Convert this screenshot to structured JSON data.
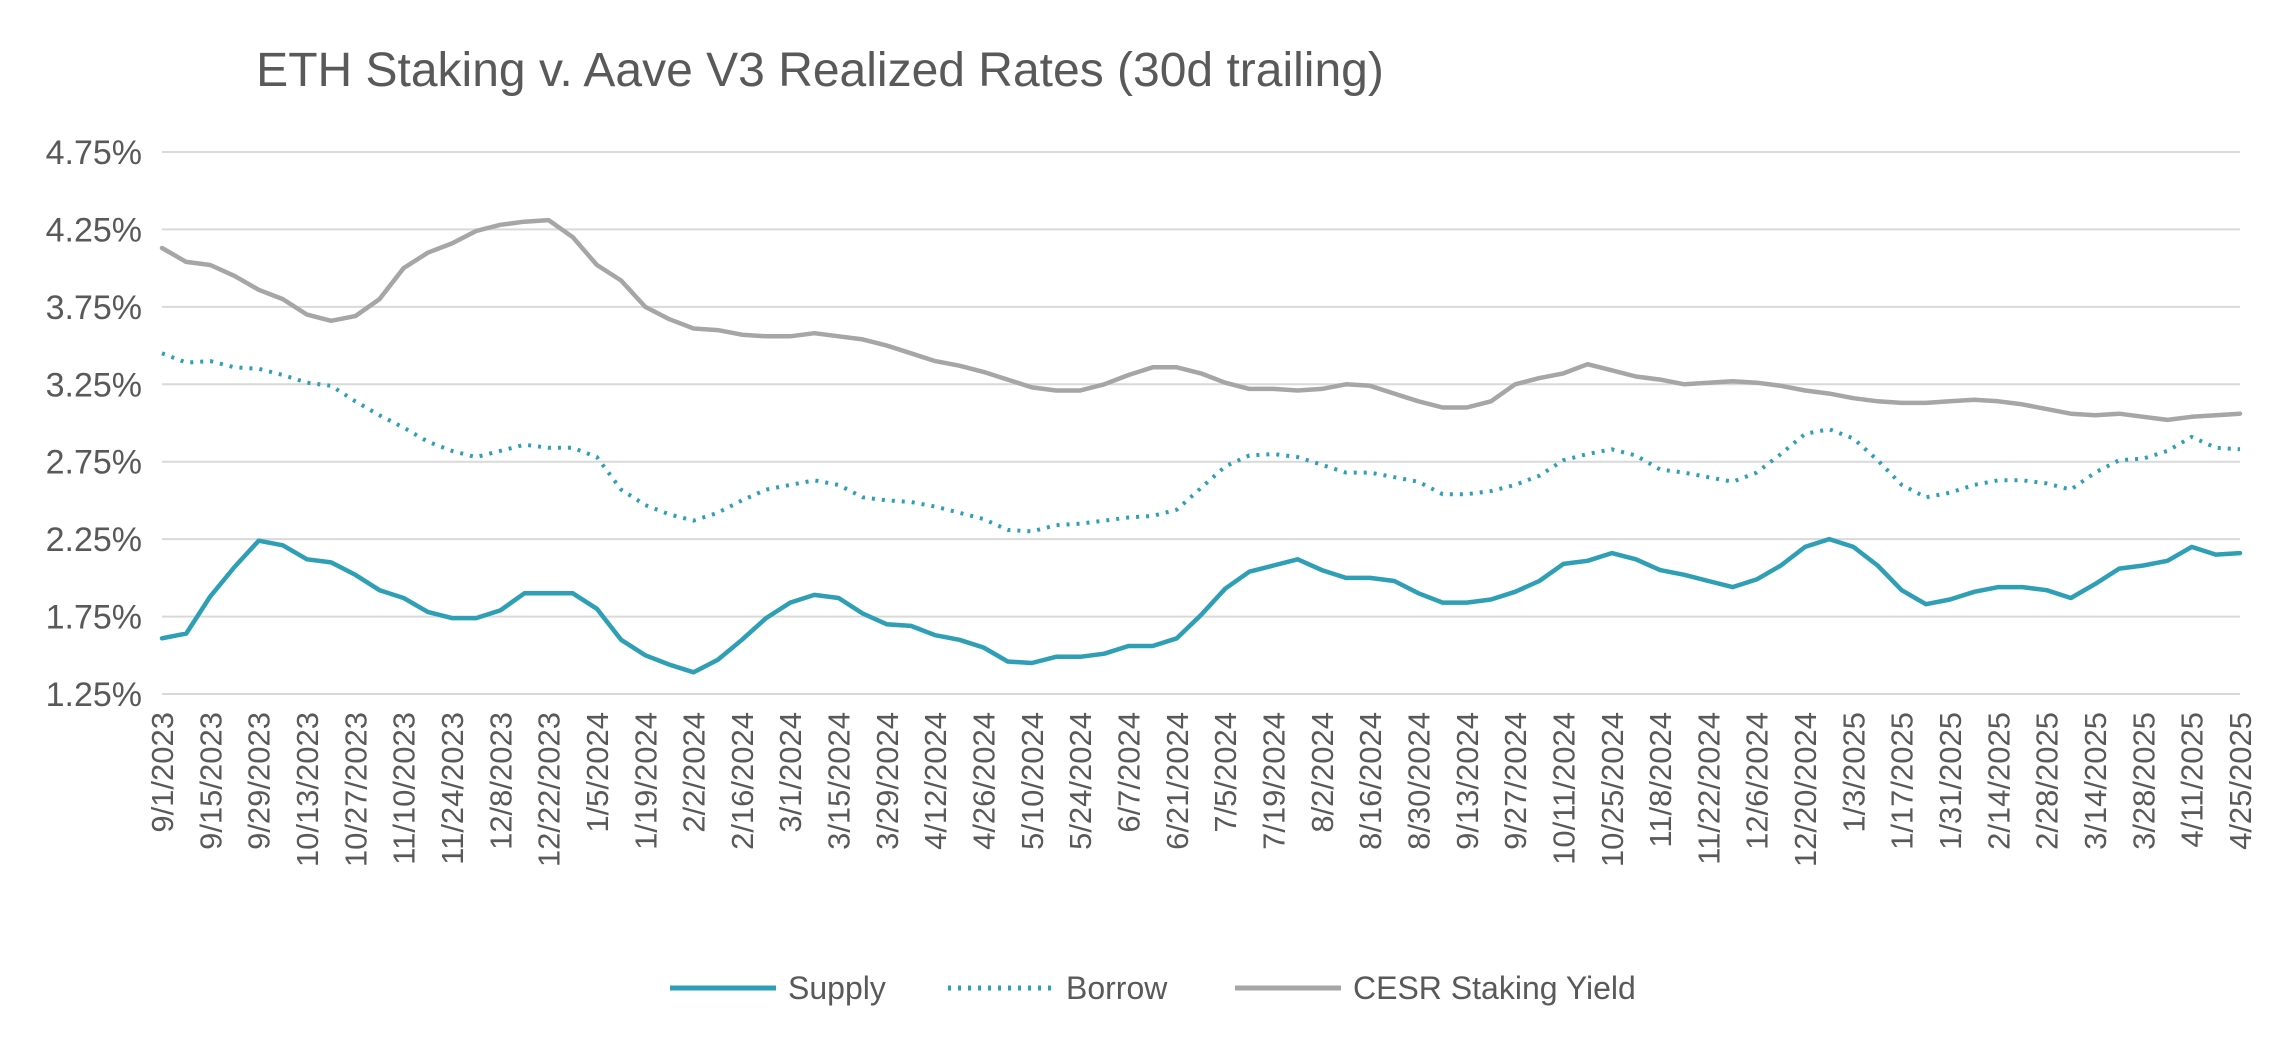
{
  "chart_data": {
    "type": "line",
    "title": "ETH Staking v. Aave V3 Realized Rates (30d trailing)",
    "xlabel": "",
    "ylabel": "",
    "ylim": [
      1.25,
      4.75
    ],
    "y_ticks": [
      "4.75%",
      "4.25%",
      "3.75%",
      "3.25%",
      "2.75%",
      "2.25%",
      "1.75%",
      "1.25%"
    ],
    "y_tick_values": [
      4.75,
      4.25,
      3.75,
      3.25,
      2.75,
      2.25,
      1.75,
      1.25
    ],
    "x_range": [
      "9/1/2023",
      "4/25/2025"
    ],
    "x_ticks": [
      "9/1/2023",
      "9/15/2023",
      "9/29/2023",
      "10/13/2023",
      "10/27/2023",
      "11/10/2023",
      "11/24/2023",
      "12/8/2023",
      "12/22/2023",
      "1/5/2024",
      "1/19/2024",
      "2/2/2024",
      "2/16/2024",
      "3/1/2024",
      "3/15/2024",
      "3/29/2024",
      "4/12/2024",
      "4/26/2024",
      "5/10/2024",
      "5/24/2024",
      "6/7/2024",
      "6/21/2024",
      "7/5/2024",
      "7/19/2024",
      "8/2/2024",
      "8/16/2024",
      "8/30/2024",
      "9/13/2024",
      "9/27/2024",
      "10/11/2024",
      "10/25/2024",
      "11/8/2024",
      "11/22/2024",
      "12/6/2024",
      "12/20/2024",
      "1/3/2025",
      "1/17/2025",
      "1/31/2025",
      "2/14/2025",
      "2/28/2025",
      "3/14/2025",
      "3/28/2025",
      "4/11/2025",
      "4/25/2025"
    ],
    "grid": true,
    "legend_position": "bottom",
    "series": [
      {
        "name": "Supply",
        "color": "#2e9fb5",
        "style": "solid",
        "points": [
          [
            "9/1/2023",
            1.61
          ],
          [
            "9/8/2023",
            1.64
          ],
          [
            "9/15/2023",
            1.88
          ],
          [
            "9/22/2023",
            2.07
          ],
          [
            "9/29/2023",
            2.24
          ],
          [
            "10/6/2023",
            2.21
          ],
          [
            "10/13/2023",
            2.12
          ],
          [
            "10/20/2023",
            2.1
          ],
          [
            "10/27/2023",
            2.02
          ],
          [
            "11/3/2023",
            1.92
          ],
          [
            "11/10/2023",
            1.87
          ],
          [
            "11/17/2023",
            1.78
          ],
          [
            "11/24/2023",
            1.74
          ],
          [
            "12/1/2023",
            1.74
          ],
          [
            "12/8/2023",
            1.79
          ],
          [
            "12/15/2023",
            1.9
          ],
          [
            "12/22/2023",
            1.9
          ],
          [
            "12/29/2023",
            1.9
          ],
          [
            "1/5/2024",
            1.8
          ],
          [
            "1/12/2024",
            1.6
          ],
          [
            "1/19/2024",
            1.5
          ],
          [
            "1/26/2024",
            1.44
          ],
          [
            "2/2/2024",
            1.39
          ],
          [
            "2/9/2024",
            1.47
          ],
          [
            "2/16/2024",
            1.6
          ],
          [
            "2/23/2024",
            1.74
          ],
          [
            "3/1/2024",
            1.84
          ],
          [
            "3/8/2024",
            1.89
          ],
          [
            "3/15/2024",
            1.87
          ],
          [
            "3/22/2024",
            1.77
          ],
          [
            "3/29/2024",
            1.7
          ],
          [
            "4/5/2024",
            1.69
          ],
          [
            "4/12/2024",
            1.63
          ],
          [
            "4/19/2024",
            1.6
          ],
          [
            "4/26/2024",
            1.55
          ],
          [
            "5/3/2024",
            1.46
          ],
          [
            "5/10/2024",
            1.45
          ],
          [
            "5/17/2024",
            1.49
          ],
          [
            "5/24/2024",
            1.49
          ],
          [
            "5/31/2024",
            1.51
          ],
          [
            "6/7/2024",
            1.56
          ],
          [
            "6/14/2024",
            1.56
          ],
          [
            "6/21/2024",
            1.61
          ],
          [
            "6/28/2024",
            1.76
          ],
          [
            "7/5/2024",
            1.93
          ],
          [
            "7/12/2024",
            2.04
          ],
          [
            "7/19/2024",
            2.08
          ],
          [
            "7/26/2024",
            2.12
          ],
          [
            "8/2/2024",
            2.05
          ],
          [
            "8/9/2024",
            2.0
          ],
          [
            "8/16/2024",
            2.0
          ],
          [
            "8/23/2024",
            1.98
          ],
          [
            "8/30/2024",
            1.9
          ],
          [
            "9/6/2024",
            1.84
          ],
          [
            "9/13/2024",
            1.84
          ],
          [
            "9/20/2024",
            1.86
          ],
          [
            "9/27/2024",
            1.91
          ],
          [
            "10/4/2024",
            1.98
          ],
          [
            "10/11/2024",
            2.09
          ],
          [
            "10/18/2024",
            2.11
          ],
          [
            "10/25/2024",
            2.16
          ],
          [
            "11/1/2024",
            2.12
          ],
          [
            "11/8/2024",
            2.05
          ],
          [
            "11/15/2024",
            2.02
          ],
          [
            "11/22/2024",
            1.98
          ],
          [
            "11/29/2024",
            1.94
          ],
          [
            "12/6/2024",
            1.99
          ],
          [
            "12/13/2024",
            2.08
          ],
          [
            "12/20/2024",
            2.2
          ],
          [
            "12/27/2024",
            2.25
          ],
          [
            "1/3/2025",
            2.2
          ],
          [
            "1/10/2025",
            2.08
          ],
          [
            "1/17/2025",
            1.92
          ],
          [
            "1/24/2025",
            1.83
          ],
          [
            "1/31/2025",
            1.86
          ],
          [
            "2/7/2025",
            1.91
          ],
          [
            "2/14/2025",
            1.94
          ],
          [
            "2/21/2025",
            1.94
          ],
          [
            "2/28/2025",
            1.92
          ],
          [
            "3/7/2025",
            1.87
          ],
          [
            "3/14/2025",
            1.96
          ],
          [
            "3/21/2025",
            2.06
          ],
          [
            "3/28/2025",
            2.08
          ],
          [
            "4/4/2025",
            2.11
          ],
          [
            "4/11/2025",
            2.2
          ],
          [
            "4/18/2025",
            2.15
          ],
          [
            "4/25/2025",
            2.16
          ]
        ]
      },
      {
        "name": "Borrow",
        "color": "#2e9fb5",
        "style": "dotted",
        "points": [
          [
            "9/1/2023",
            3.45
          ],
          [
            "9/8/2023",
            3.39
          ],
          [
            "9/15/2023",
            3.4
          ],
          [
            "9/22/2023",
            3.36
          ],
          [
            "9/29/2023",
            3.35
          ],
          [
            "10/6/2023",
            3.31
          ],
          [
            "10/13/2023",
            3.26
          ],
          [
            "10/20/2023",
            3.24
          ],
          [
            "10/27/2023",
            3.14
          ],
          [
            "11/3/2023",
            3.05
          ],
          [
            "11/10/2023",
            2.97
          ],
          [
            "11/17/2023",
            2.88
          ],
          [
            "11/24/2023",
            2.82
          ],
          [
            "12/1/2023",
            2.78
          ],
          [
            "12/8/2023",
            2.82
          ],
          [
            "12/15/2023",
            2.86
          ],
          [
            "12/22/2023",
            2.84
          ],
          [
            "12/29/2023",
            2.84
          ],
          [
            "1/5/2024",
            2.78
          ],
          [
            "1/12/2024",
            2.57
          ],
          [
            "1/19/2024",
            2.47
          ],
          [
            "1/26/2024",
            2.41
          ],
          [
            "2/2/2024",
            2.37
          ],
          [
            "2/9/2024",
            2.42
          ],
          [
            "2/16/2024",
            2.5
          ],
          [
            "2/23/2024",
            2.57
          ],
          [
            "3/1/2024",
            2.6
          ],
          [
            "3/8/2024",
            2.63
          ],
          [
            "3/15/2024",
            2.6
          ],
          [
            "3/22/2024",
            2.52
          ],
          [
            "3/29/2024",
            2.5
          ],
          [
            "4/5/2024",
            2.49
          ],
          [
            "4/12/2024",
            2.46
          ],
          [
            "4/19/2024",
            2.42
          ],
          [
            "4/26/2024",
            2.38
          ],
          [
            "5/3/2024",
            2.31
          ],
          [
            "5/10/2024",
            2.3
          ],
          [
            "5/17/2024",
            2.34
          ],
          [
            "5/24/2024",
            2.35
          ],
          [
            "5/31/2024",
            2.37
          ],
          [
            "6/7/2024",
            2.39
          ],
          [
            "6/14/2024",
            2.4
          ],
          [
            "6/21/2024",
            2.44
          ],
          [
            "6/28/2024",
            2.58
          ],
          [
            "7/5/2024",
            2.72
          ],
          [
            "7/12/2024",
            2.79
          ],
          [
            "7/19/2024",
            2.8
          ],
          [
            "7/26/2024",
            2.78
          ],
          [
            "8/2/2024",
            2.73
          ],
          [
            "8/9/2024",
            2.68
          ],
          [
            "8/16/2024",
            2.68
          ],
          [
            "8/23/2024",
            2.65
          ],
          [
            "8/30/2024",
            2.62
          ],
          [
            "9/6/2024",
            2.54
          ],
          [
            "9/13/2024",
            2.54
          ],
          [
            "9/20/2024",
            2.56
          ],
          [
            "9/27/2024",
            2.6
          ],
          [
            "10/4/2024",
            2.66
          ],
          [
            "10/11/2024",
            2.76
          ],
          [
            "10/18/2024",
            2.8
          ],
          [
            "10/25/2024",
            2.83
          ],
          [
            "11/1/2024",
            2.79
          ],
          [
            "11/8/2024",
            2.7
          ],
          [
            "11/15/2024",
            2.68
          ],
          [
            "11/22/2024",
            2.65
          ],
          [
            "11/29/2024",
            2.62
          ],
          [
            "12/6/2024",
            2.68
          ],
          [
            "12/13/2024",
            2.8
          ],
          [
            "12/20/2024",
            2.93
          ],
          [
            "12/27/2024",
            2.96
          ],
          [
            "1/3/2025",
            2.9
          ],
          [
            "1/10/2025",
            2.76
          ],
          [
            "1/17/2025",
            2.6
          ],
          [
            "1/24/2025",
            2.52
          ],
          [
            "1/31/2025",
            2.55
          ],
          [
            "2/7/2025",
            2.6
          ],
          [
            "2/14/2025",
            2.63
          ],
          [
            "2/21/2025",
            2.63
          ],
          [
            "2/28/2025",
            2.61
          ],
          [
            "3/7/2025",
            2.57
          ],
          [
            "3/14/2025",
            2.68
          ],
          [
            "3/21/2025",
            2.76
          ],
          [
            "3/28/2025",
            2.77
          ],
          [
            "4/4/2025",
            2.82
          ],
          [
            "4/11/2025",
            2.91
          ],
          [
            "4/18/2025",
            2.84
          ],
          [
            "4/25/2025",
            2.83
          ]
        ]
      },
      {
        "name": "CESR Staking Yield",
        "color": "#a6a6a6",
        "style": "solid",
        "points": [
          [
            "9/1/2023",
            4.13
          ],
          [
            "9/8/2023",
            4.04
          ],
          [
            "9/15/2023",
            4.02
          ],
          [
            "9/22/2023",
            3.95
          ],
          [
            "9/29/2023",
            3.86
          ],
          [
            "10/6/2023",
            3.8
          ],
          [
            "10/13/2023",
            3.7
          ],
          [
            "10/20/2023",
            3.66
          ],
          [
            "10/27/2023",
            3.69
          ],
          [
            "11/3/2023",
            3.8
          ],
          [
            "11/10/2023",
            4.0
          ],
          [
            "11/17/2023",
            4.1
          ],
          [
            "11/24/2023",
            4.16
          ],
          [
            "12/1/2023",
            4.24
          ],
          [
            "12/8/2023",
            4.28
          ],
          [
            "12/15/2023",
            4.3
          ],
          [
            "12/22/2023",
            4.31
          ],
          [
            "12/29/2023",
            4.2
          ],
          [
            "1/5/2024",
            4.02
          ],
          [
            "1/12/2024",
            3.92
          ],
          [
            "1/19/2024",
            3.75
          ],
          [
            "1/26/2024",
            3.67
          ],
          [
            "2/2/2024",
            3.61
          ],
          [
            "2/9/2024",
            3.6
          ],
          [
            "2/16/2024",
            3.57
          ],
          [
            "2/23/2024",
            3.56
          ],
          [
            "3/1/2024",
            3.56
          ],
          [
            "3/8/2024",
            3.58
          ],
          [
            "3/15/2024",
            3.56
          ],
          [
            "3/22/2024",
            3.54
          ],
          [
            "3/29/2024",
            3.5
          ],
          [
            "4/5/2024",
            3.45
          ],
          [
            "4/12/2024",
            3.4
          ],
          [
            "4/19/2024",
            3.37
          ],
          [
            "4/26/2024",
            3.33
          ],
          [
            "5/3/2024",
            3.28
          ],
          [
            "5/10/2024",
            3.23
          ],
          [
            "5/17/2024",
            3.21
          ],
          [
            "5/24/2024",
            3.21
          ],
          [
            "5/31/2024",
            3.25
          ],
          [
            "6/7/2024",
            3.31
          ],
          [
            "6/14/2024",
            3.36
          ],
          [
            "6/21/2024",
            3.36
          ],
          [
            "6/28/2024",
            3.32
          ],
          [
            "7/5/2024",
            3.26
          ],
          [
            "7/12/2024",
            3.22
          ],
          [
            "7/19/2024",
            3.22
          ],
          [
            "7/26/2024",
            3.21
          ],
          [
            "8/2/2024",
            3.22
          ],
          [
            "8/9/2024",
            3.25
          ],
          [
            "8/16/2024",
            3.24
          ],
          [
            "8/23/2024",
            3.19
          ],
          [
            "8/30/2024",
            3.14
          ],
          [
            "9/6/2024",
            3.1
          ],
          [
            "9/13/2024",
            3.1
          ],
          [
            "9/20/2024",
            3.14
          ],
          [
            "9/27/2024",
            3.25
          ],
          [
            "10/4/2024",
            3.29
          ],
          [
            "10/11/2024",
            3.32
          ],
          [
            "10/18/2024",
            3.38
          ],
          [
            "10/25/2024",
            3.34
          ],
          [
            "11/1/2024",
            3.3
          ],
          [
            "11/8/2024",
            3.28
          ],
          [
            "11/15/2024",
            3.25
          ],
          [
            "11/22/2024",
            3.26
          ],
          [
            "11/29/2024",
            3.27
          ],
          [
            "12/6/2024",
            3.26
          ],
          [
            "12/13/2024",
            3.24
          ],
          [
            "12/20/2024",
            3.21
          ],
          [
            "12/27/2024",
            3.19
          ],
          [
            "1/3/2025",
            3.16
          ],
          [
            "1/10/2025",
            3.14
          ],
          [
            "1/17/2025",
            3.13
          ],
          [
            "1/24/2025",
            3.13
          ],
          [
            "1/31/2025",
            3.14
          ],
          [
            "2/7/2025",
            3.15
          ],
          [
            "2/14/2025",
            3.14
          ],
          [
            "2/21/2025",
            3.12
          ],
          [
            "2/28/2025",
            3.09
          ],
          [
            "3/7/2025",
            3.06
          ],
          [
            "3/14/2025",
            3.05
          ],
          [
            "3/21/2025",
            3.06
          ],
          [
            "3/28/2025",
            3.04
          ],
          [
            "4/4/2025",
            3.02
          ],
          [
            "4/11/2025",
            3.04
          ],
          [
            "4/18/2025",
            3.05
          ],
          [
            "4/25/2025",
            3.06
          ]
        ]
      }
    ]
  }
}
